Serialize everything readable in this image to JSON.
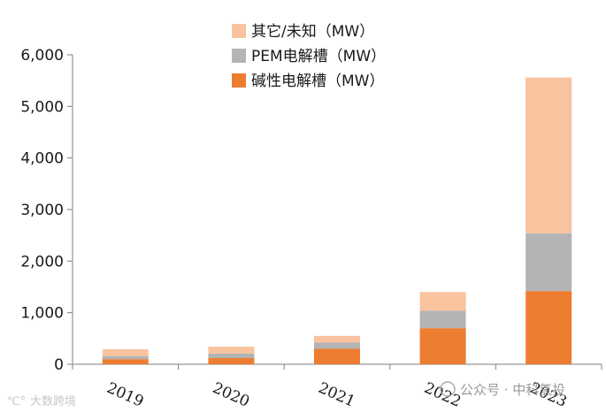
{
  "chart_data": {
    "type": "bar",
    "stacked": true,
    "title": "",
    "xlabel": "",
    "ylabel": "",
    "categories": [
      "2019",
      "2020",
      "2021",
      "2022",
      "2023"
    ],
    "series": [
      {
        "name": "碱性电解槽（MW）",
        "color": "#ed7d31",
        "values": [
          100,
          120,
          300,
          700,
          1420
        ]
      },
      {
        "name": "PEM电解槽（MW）",
        "color": "#b4b4b4",
        "values": [
          60,
          90,
          120,
          340,
          1120
        ]
      },
      {
        "name": "其它/未知（MW）",
        "color": "#f8c39e",
        "values": [
          130,
          130,
          130,
          360,
          3020
        ]
      }
    ],
    "ylim": [
      0,
      6000
    ],
    "yticks": [
      0,
      1000,
      2000,
      3000,
      4000,
      5000,
      6000
    ],
    "ytick_labels": [
      "0",
      "1,000",
      "2,000",
      "3,000",
      "4,000",
      "5,000",
      "6,000"
    ],
    "grid": false,
    "legend_position": "top-center",
    "legend_order": [
      2,
      1,
      0
    ]
  },
  "watermark": {
    "left_text": "大数跨境",
    "right_text": "公众号 · 中科氢投"
  }
}
